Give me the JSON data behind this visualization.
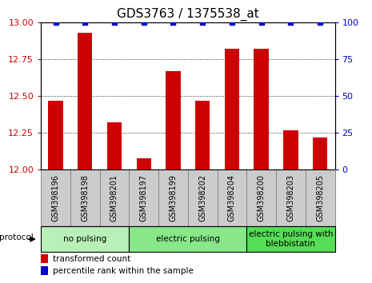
{
  "title": "GDS3763 / 1375538_at",
  "samples": [
    "GSM398196",
    "GSM398198",
    "GSM398201",
    "GSM398197",
    "GSM398199",
    "GSM398202",
    "GSM398204",
    "GSM398200",
    "GSM398203",
    "GSM398205"
  ],
  "red_values": [
    12.47,
    12.93,
    12.32,
    12.08,
    12.67,
    12.47,
    12.82,
    12.82,
    12.27,
    12.22
  ],
  "blue_values": [
    100,
    100,
    100,
    100,
    100,
    100,
    100,
    100,
    100,
    100
  ],
  "ylim_left": [
    12.0,
    13.0
  ],
  "ylim_right": [
    0,
    100
  ],
  "yticks_left": [
    12.0,
    12.25,
    12.5,
    12.75,
    13.0
  ],
  "yticks_right": [
    0,
    25,
    50,
    75,
    100
  ],
  "groups": [
    {
      "label": "no pulsing",
      "start": 0,
      "end": 3,
      "color": "#b8f0b8"
    },
    {
      "label": "electric pulsing",
      "start": 3,
      "end": 7,
      "color": "#88e888"
    },
    {
      "label": "electric pulsing with\nblebbistatin",
      "start": 7,
      "end": 10,
      "color": "#55dd55"
    }
  ],
  "red_color": "#cc0000",
  "blue_color": "#0000cc",
  "bar_width": 0.5,
  "protocol_label": "protocol",
  "legend_red": "transformed count",
  "legend_blue": "percentile rank within the sample",
  "tick_label_color_left": "#cc0000",
  "tick_label_color_right": "#0000cc",
  "title_fontsize": 11,
  "axis_tick_fontsize": 8,
  "sample_fontsize": 7,
  "group_fontsize": 7.5,
  "legend_fontsize": 7.5,
  "xlabel_box_color": "#cccccc",
  "xlabel_box_edge": "#888888"
}
